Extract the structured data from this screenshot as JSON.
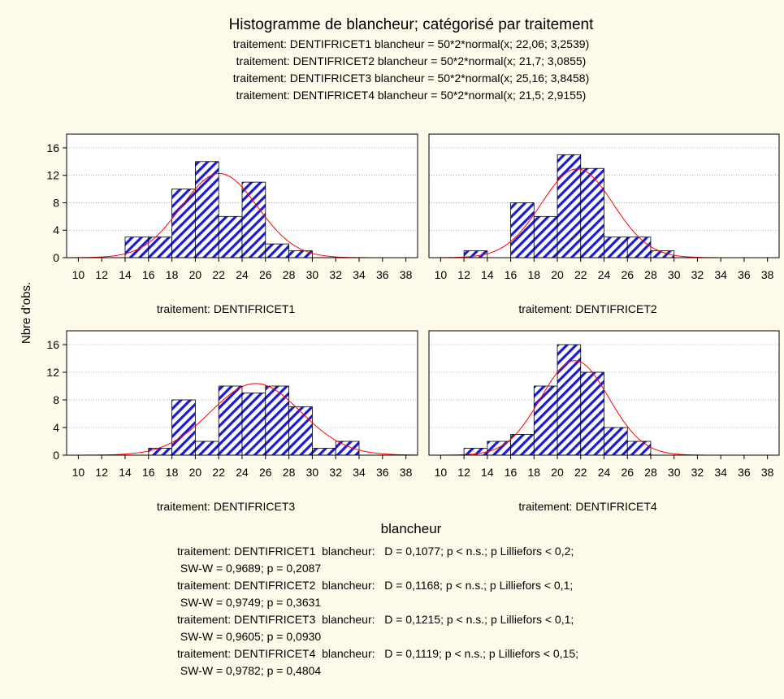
{
  "chart_data": {
    "type": "bar",
    "title": "Histogramme de blancheur; catégorisé par traitement",
    "subtitles": [
      "traitement: DENTIFRICET1 blancheur = 50*2*normal(x; 22,06; 3,2539)",
      "traitement: DENTIFRICET2 blancheur = 50*2*normal(x; 21,7; 3,0855)",
      "traitement: DENTIFRICET3 blancheur = 50*2*normal(x; 25,16; 3,8458)",
      "traitement: DENTIFRICET4 blancheur = 50*2*normal(x; 21,5; 2,9155)"
    ],
    "xlabel": "blancheur",
    "ylabel": "Nbre d'obs.",
    "x_ticks": [
      10,
      12,
      14,
      16,
      18,
      20,
      22,
      24,
      26,
      28,
      30,
      32,
      34,
      36,
      38
    ],
    "y_ticks": [
      0,
      4,
      8,
      12,
      16
    ],
    "xlim": [
      9,
      39
    ],
    "ylim": [
      0,
      18
    ],
    "bin_width": 2,
    "grid": true,
    "colors": {
      "bar_hatch": "#1b1bd6",
      "curve": "#ff0000",
      "background": "#fefaea",
      "plot_background": "#ffffff"
    },
    "panels": [
      {
        "label": "traitement: DENTIFRICET1",
        "bin_starts": [
          14,
          16,
          18,
          20,
          22,
          24,
          26,
          28
        ],
        "counts": [
          3,
          3,
          10,
          14,
          6,
          11,
          2,
          1
        ],
        "mean": 22.06,
        "sd": 3.2539
      },
      {
        "label": "traitement: DENTIFRICET2",
        "bin_starts": [
          12,
          14,
          16,
          18,
          20,
          22,
          24,
          26,
          28
        ],
        "counts": [
          1,
          0,
          8,
          6,
          15,
          13,
          3,
          3,
          1
        ],
        "mean": 21.7,
        "sd": 3.0855
      },
      {
        "label": "traitement: DENTIFRICET3",
        "bin_starts": [
          16,
          18,
          20,
          22,
          24,
          26,
          28,
          30,
          32
        ],
        "counts": [
          1,
          8,
          2,
          10,
          9,
          10,
          7,
          1,
          2
        ],
        "mean": 25.16,
        "sd": 3.8458
      },
      {
        "label": "traitement: DENTIFRICET4",
        "bin_starts": [
          12,
          14,
          16,
          18,
          20,
          22,
          24,
          26
        ],
        "counts": [
          1,
          2,
          3,
          10,
          16,
          12,
          4,
          2
        ],
        "mean": 21.5,
        "sd": 2.9155
      }
    ],
    "tests": [
      {
        "left": "traitement: DENTIFRICET1  blancheur:",
        "right": "D = 0,1077; p < n.s.; p Lilliefors < 0,2;",
        "sw": " SW-W = 0,9689; p = 0,2087"
      },
      {
        "left": "traitement: DENTIFRICET2  blancheur:",
        "right": "D = 0,1168; p < n.s.; p Lilliefors < 0,1;",
        "sw": " SW-W = 0,9749; p = 0,3631"
      },
      {
        "left": "traitement: DENTIFRICET3  blancheur:",
        "right": "D = 0,1215; p < n.s.; p Lilliefors < 0,1;",
        "sw": " SW-W = 0,9605; p = 0,0930"
      },
      {
        "left": "traitement: DENTIFRICET4  blancheur:",
        "right": "D = 0,1119; p < n.s.; p Lilliefors < 0,15;",
        "sw": " SW-W = 0,9782; p = 0,4804"
      }
    ]
  }
}
